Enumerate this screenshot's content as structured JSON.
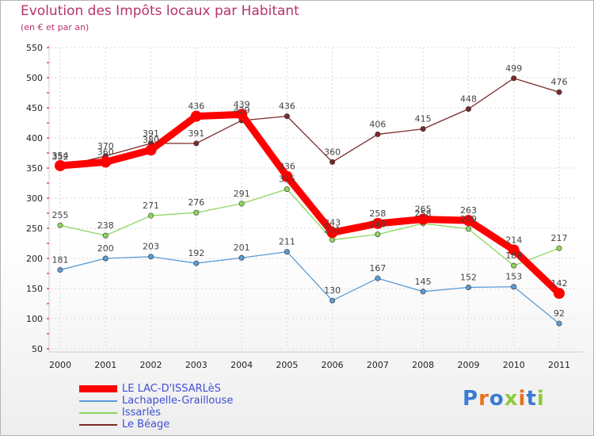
{
  "chart_data": {
    "type": "line",
    "title": "Evolution des Impôts locaux par Habitant",
    "subtitle": "(en € et par an)",
    "categories": [
      "2000",
      "2001",
      "2002",
      "2003",
      "2004",
      "2005",
      "2006",
      "2007",
      "2008",
      "2009",
      "2010",
      "2011"
    ],
    "ylim": [
      50,
      550
    ],
    "yticks": [
      50,
      100,
      150,
      200,
      250,
      300,
      350,
      400,
      450,
      500,
      550
    ],
    "series": [
      {
        "name": "Le Béage",
        "color": "#7a2a2a",
        "values": [
          352,
          370,
          391,
          391,
          429,
          436,
          360,
          406,
          415,
          448,
          499,
          476
        ]
      },
      {
        "name": "Issarlès",
        "color": "#8fd65e",
        "values": [
          255,
          238,
          271,
          276,
          291,
          315,
          231,
          240,
          258,
          249,
          188,
          217
        ]
      },
      {
        "name": "Lachapelle-Graillouse",
        "color": "#5b9bd5",
        "values": [
          181,
          200,
          203,
          192,
          201,
          211,
          130,
          167,
          145,
          152,
          153,
          92
        ]
      },
      {
        "name": "LE LAC-D'ISSARLèS",
        "color": "#ff0000",
        "values": [
          354,
          360,
          380,
          436,
          439,
          336,
          243,
          258,
          265,
          263,
          214,
          142
        ]
      }
    ],
    "labels": [
      {
        "series": 0,
        "texts": [
          "352",
          "370",
          "391",
          "391",
          "429",
          "436",
          "360",
          "406",
          "415",
          "448",
          "499",
          "476"
        ]
      },
      {
        "series": 1,
        "texts": [
          "255",
          "238",
          "271",
          "276",
          "291",
          "315",
          "231",
          "240",
          "258",
          "249",
          "188",
          "217"
        ]
      },
      {
        "series": 2,
        "texts": [
          "181",
          "200",
          "203",
          "192",
          "201",
          "211",
          "130",
          "167",
          "145",
          "152",
          "153",
          "92"
        ]
      },
      {
        "series": 3,
        "texts": [
          "354",
          "360",
          "380",
          "436",
          "439",
          "336",
          "243",
          "258",
          "265",
          "263",
          "214",
          "142"
        ]
      }
    ]
  },
  "legend": [
    {
      "label": "LE LAC-D'ISSARLèS",
      "color": "#ff0000"
    },
    {
      "label": "Lachapelle-Graillouse",
      "color": "#5b9bd5"
    },
    {
      "label": "Issarlès",
      "color": "#8fd65e"
    },
    {
      "label": "Le Béage",
      "color": "#7a2a2a"
    }
  ],
  "logo": {
    "text": "Proxiti",
    "letter_colors": [
      "#3a7bd5",
      "#e8711c",
      "#3a7bd5",
      "#8fc93a",
      "#e8711c",
      "#3a7bd5",
      "#8fc93a"
    ]
  }
}
